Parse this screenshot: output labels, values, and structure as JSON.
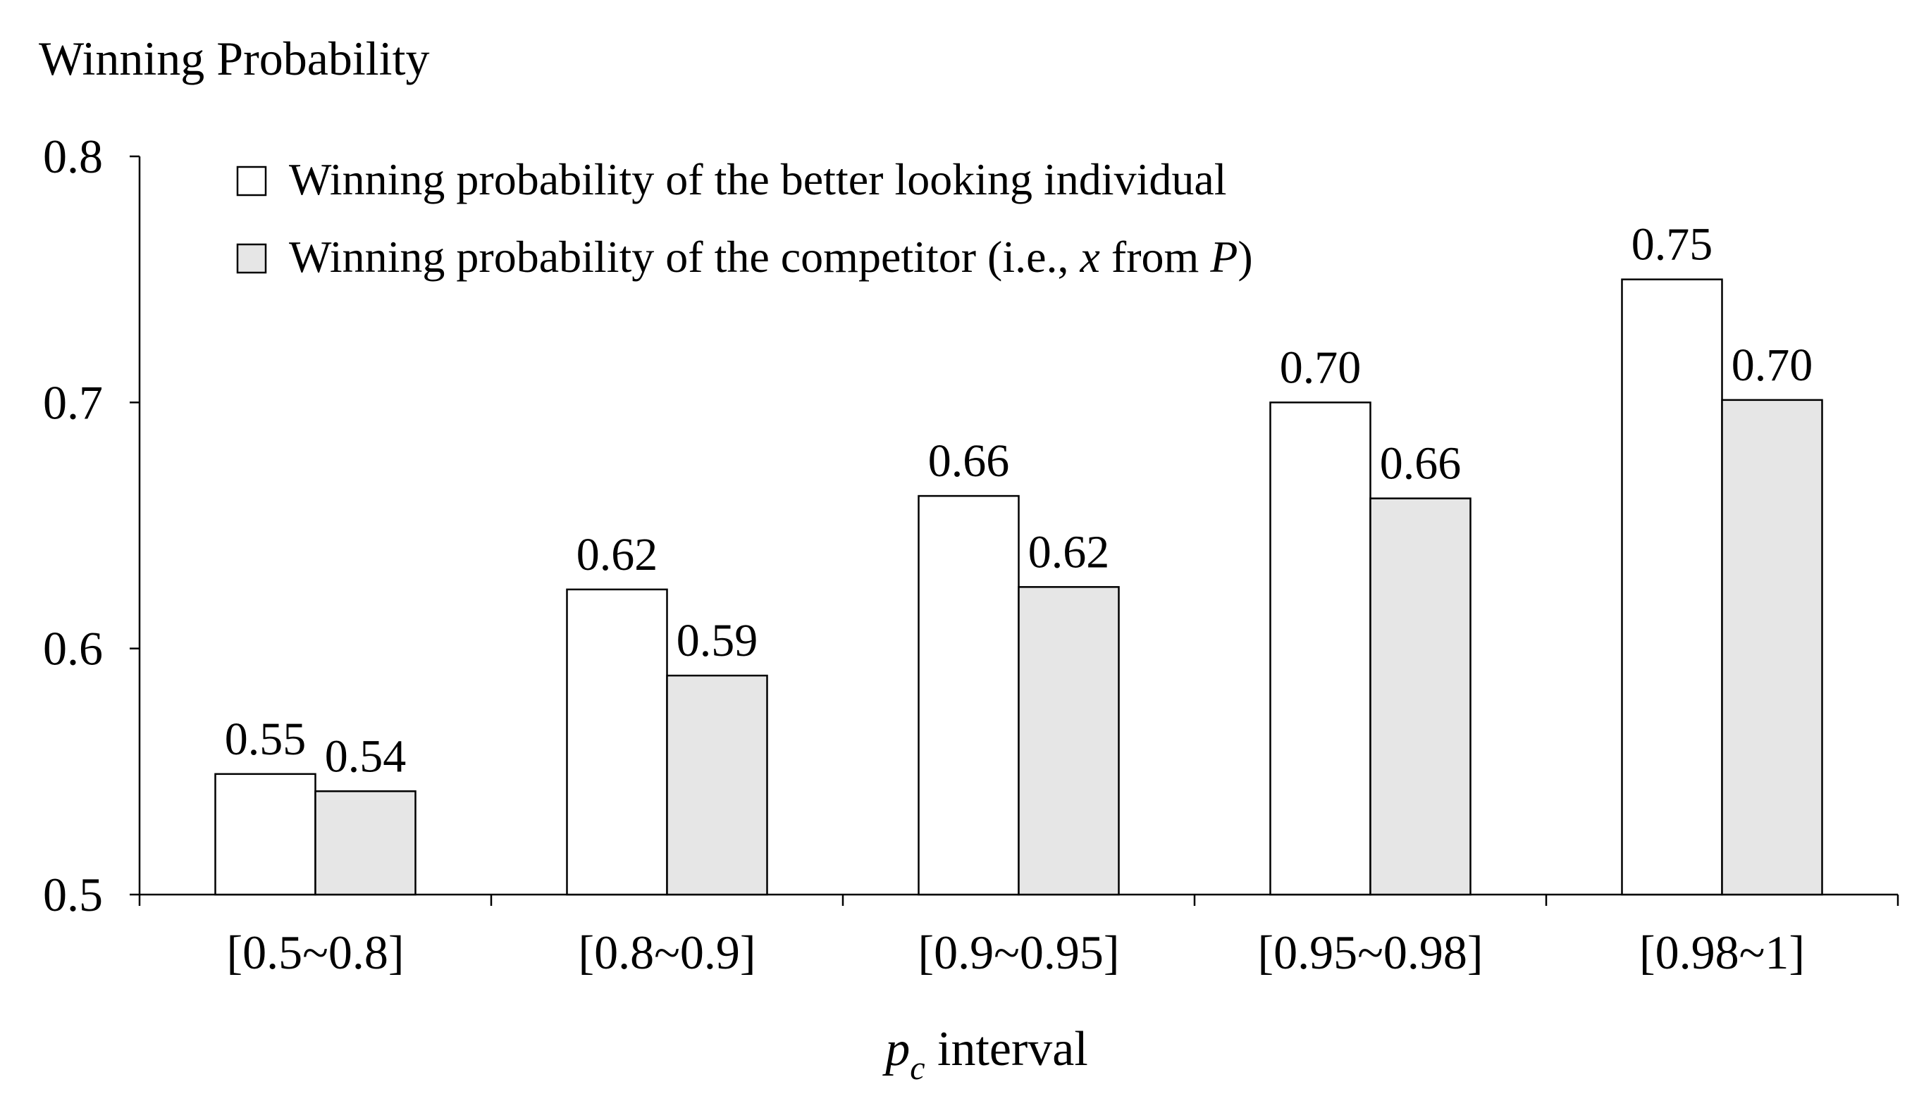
{
  "chart_data": {
    "type": "bar",
    "title": "Winning Probability",
    "xlabel": {
      "prefix": "p",
      "subscript": "c",
      "suffix": " interval"
    },
    "ylabel": "",
    "ylim": [
      0.5,
      0.8
    ],
    "yticks": [
      "0.5",
      "0.6",
      "0.7",
      "0.8"
    ],
    "categories": [
      "[0.5~0.8]",
      "[0.8~0.9]",
      "[0.9~0.95]",
      "[0.95~0.98]",
      "[0.98~1]"
    ],
    "series": [
      {
        "name": "Winning probability of the better looking individual",
        "color": "#ffffff",
        "values": [
          0.549,
          0.624,
          0.662,
          0.7,
          0.75
        ],
        "labels": [
          "0.55",
          "0.62",
          "0.66",
          "0.70",
          "0.75"
        ]
      },
      {
        "name": "Winning probability of the competitor (i.e., x from P)",
        "color": "#e6e6e6",
        "values": [
          0.542,
          0.589,
          0.625,
          0.661,
          0.701
        ],
        "labels": [
          "0.54",
          "0.59",
          "0.62",
          "0.66",
          "0.70"
        ]
      }
    ],
    "legend": {
      "position": "top-left",
      "entries": [
        {
          "text": "Winning probability of the better looking individual"
        },
        {
          "pre": "Winning probability of the competitor (i.e., ",
          "var1": "x",
          "mid": " from ",
          "var2": "P",
          "post": ")"
        }
      ]
    },
    "grid": false
  }
}
